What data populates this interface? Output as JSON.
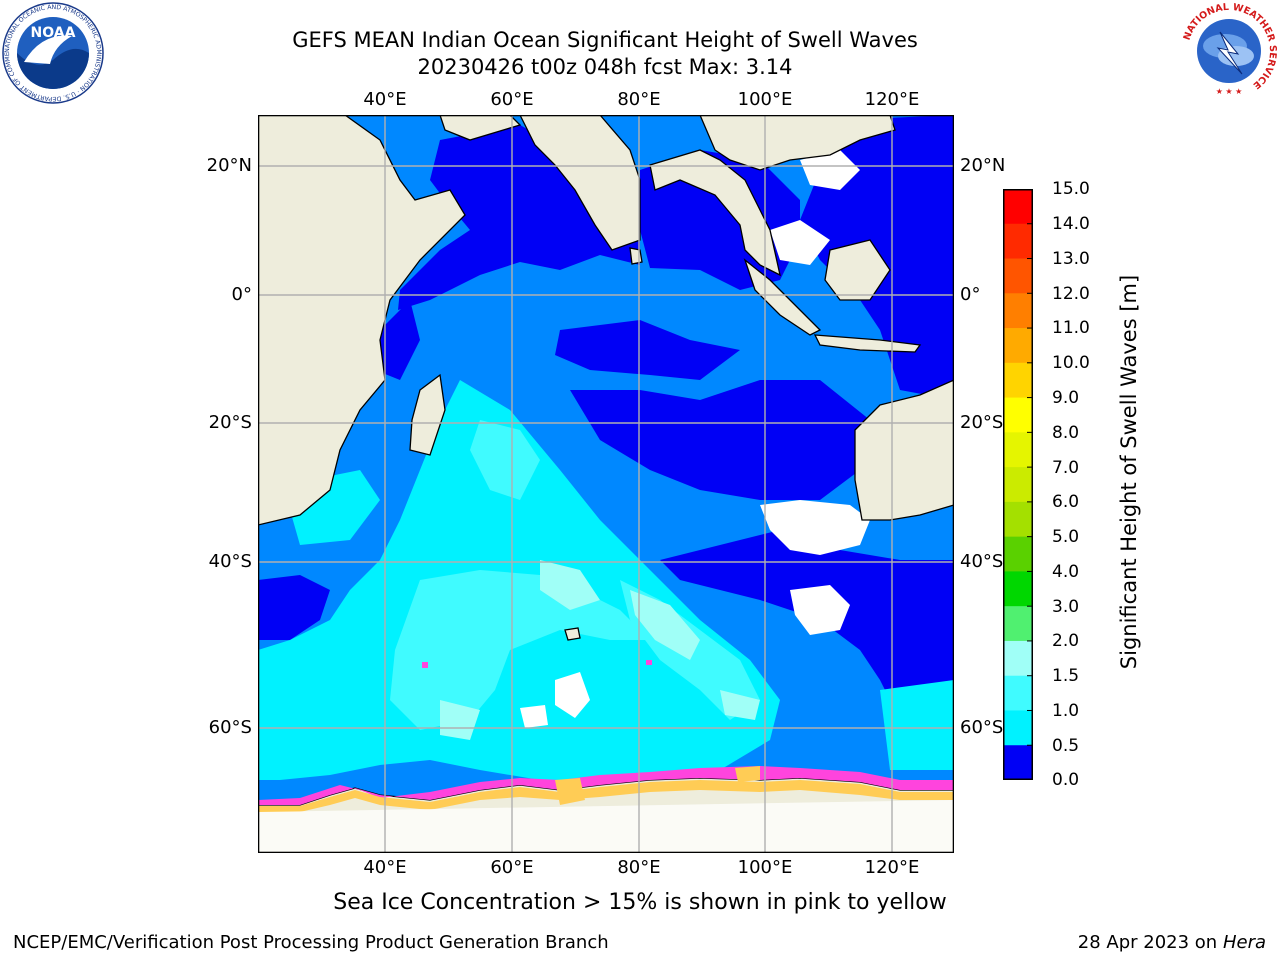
{
  "header": {
    "title_line1": "GEFS MEAN Indian Ocean Significant Height of Swell Waves",
    "title_line2": "20230426 t00z 048h fcst   Max: 3.14"
  },
  "axes": {
    "lon_labels": [
      "40°E",
      "60°E",
      "80°E",
      "100°E",
      "120°E"
    ],
    "lat_labels": [
      "20°N",
      "0°",
      "20°S",
      "40°S",
      "60°S"
    ]
  },
  "colorbar": {
    "title": "Significant Height of Swell Waves [m]",
    "ticks": [
      "15.0",
      "14.0",
      "13.0",
      "12.0",
      "11.0",
      "10.0",
      "9.0",
      "8.0",
      "7.0",
      "6.0",
      "5.0",
      "4.0",
      "3.0",
      "2.0",
      "1.5",
      "1.0",
      "0.5",
      "0.0"
    ],
    "colors": [
      "#ff0000",
      "#ff2a00",
      "#ff5500",
      "#ff7f00",
      "#ffaa00",
      "#ffd400",
      "#ffff00",
      "#e5f500",
      "#cbeb00",
      "#a4e000",
      "#5ad100",
      "#00d700",
      "#50f070",
      "#a0fff7",
      "#40fbff",
      "#00f2ff",
      "#0088ff",
      "#0000f5"
    ]
  },
  "footer": {
    "ice_note": "Sea Ice Concentration > 15% is shown in pink to yellow",
    "credit": "NCEP/EMC/Verification Post Processing Product Generation Branch",
    "date_prefix": "28 Apr 2023 on",
    "machine": "Hera"
  },
  "logos": {
    "noaa_text": "NOAA",
    "noaa_ring": "NATIONAL OCEANIC AND ATMOSPHERIC ADMINISTRATION · U.S. DEPARTMENT OF COMMERCE",
    "nws_ring": "NATIONAL WEATHER SERVICE"
  },
  "colors": {
    "land": "#eeeddc",
    "ocean_0_05": "#0000f5",
    "ocean_05_1": "#0088ff",
    "ocean_1_15": "#00f2ff",
    "ocean_15_2": "#40fbff",
    "ocean_2_3": "#a0fff7",
    "ice_pink": "#ff44dd",
    "ice_yellow": "#ffcc55",
    "grid": "#b0b0b0"
  }
}
